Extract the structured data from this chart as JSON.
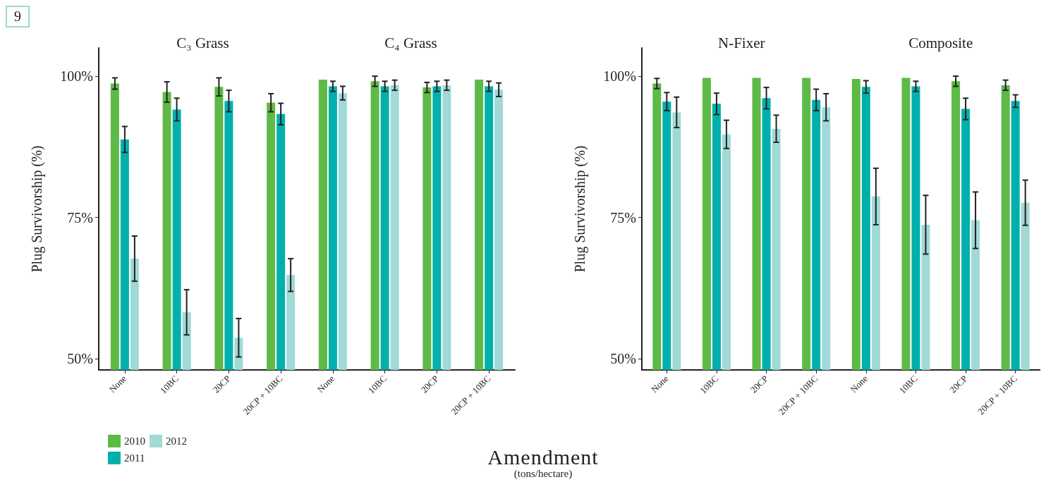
{
  "chart_data": [
    {
      "type": "bar",
      "ylabel": "Plug Survivorship (%)",
      "annotations": [
        "9",
        "C₃ Grass",
        "C₄ Grass"
      ],
      "categories": [
        "None",
        "10BC",
        "20CP",
        "20CP + 10BC",
        "None",
        "10BC",
        "20CP",
        "20CP + 10BC"
      ],
      "ylim": [
        48,
        105
      ],
      "yticks": [
        {
          "value": 50,
          "label": "50%"
        },
        {
          "value": 75,
          "label": "75%"
        },
        {
          "value": 100,
          "label": "100%"
        }
      ],
      "legend": "bottom left",
      "grid": false,
      "series": [
        {
          "name": "2010",
          "color": "#5dba47",
          "values": [
            98.7,
            97.2,
            98.1,
            95.3,
            99.4,
            99.1,
            98.0,
            99.4
          ],
          "errors": [
            1,
            1.8,
            1.6,
            1.6,
            null,
            0.9,
            0.9,
            null
          ]
        },
        {
          "name": "2011",
          "color": "#00b0ac",
          "values": [
            88.8,
            94.1,
            95.6,
            93.3,
            98.2,
            98.2,
            98.2,
            98.2
          ],
          "errors": [
            2.3,
            2,
            1.9,
            1.9,
            0.9,
            0.9,
            0.9,
            0.9
          ]
        },
        {
          "name": "2012",
          "color": "#a0d9d5",
          "values": [
            67.7,
            58.2,
            53.7,
            64.8,
            97.0,
            98.4,
            98.4,
            97.6
          ],
          "errors": [
            4,
            4,
            3.4,
            2.9,
            1.2,
            0.9,
            0.9,
            1.2
          ]
        }
      ]
    },
    {
      "type": "bar",
      "ylabel": "Plug Survivorship (%)",
      "xlabel": "Amendment",
      "annotations": [
        "N-Fixer",
        "Composite",
        "(tons/hectare)"
      ],
      "categories": [
        "None",
        "10BC",
        "20CP",
        "20CP + 10BC",
        "None",
        "10BC",
        "20CP",
        "20CP + 10BC"
      ],
      "ylim": [
        48,
        105
      ],
      "yticks": [
        {
          "value": 50,
          "label": "50%"
        },
        {
          "value": 75,
          "label": "75%"
        },
        {
          "value": 100,
          "label": "100%"
        }
      ],
      "grid": false,
      "series": [
        {
          "color": "#5dba47",
          "values": [
            98.7,
            99.7,
            99.7,
            99.7,
            99.5,
            99.7,
            99.1,
            98.4
          ],
          "errors": [
            0.9,
            null,
            null,
            null,
            null,
            null,
            0.9,
            0.9
          ]
        },
        {
          "color": "#00b0ac",
          "values": [
            95.5,
            95.1,
            96.1,
            95.8,
            98.1,
            98.2,
            94.2,
            95.6
          ],
          "errors": [
            1.6,
            1.9,
            1.9,
            1.9,
            1.1,
            0.9,
            1.9,
            1.1
          ]
        },
        {
          "color": "#a0d9d5",
          "values": [
            93.6,
            89.7,
            90.7,
            94.5,
            78.7,
            73.7,
            74.5,
            77.6
          ],
          "errors": [
            2.7,
            2.5,
            2.4,
            2.4,
            5,
            5.2,
            5,
            4
          ]
        }
      ]
    }
  ]
}
